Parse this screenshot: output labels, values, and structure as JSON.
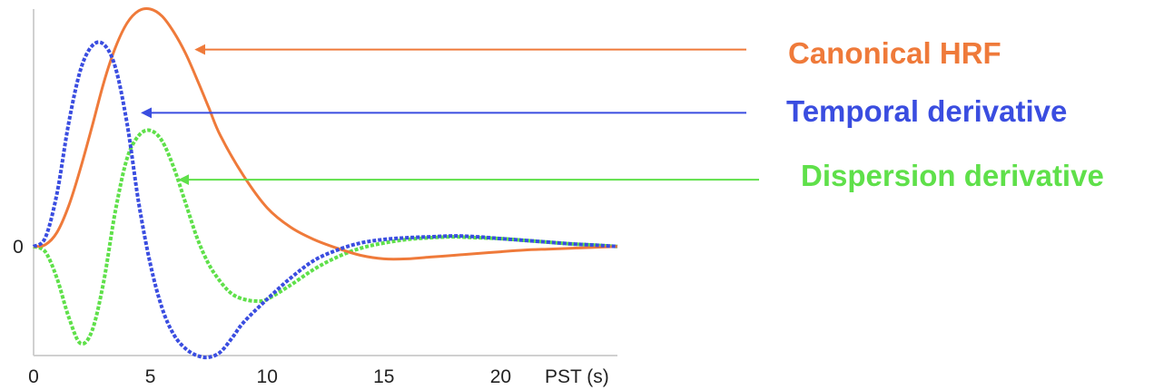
{
  "chart_data": {
    "type": "line",
    "title": "",
    "xlabel": "PST (s)",
    "ylabel": "",
    "xlim": [
      0,
      25
    ],
    "ylim": [
      -0.62,
      1.35
    ],
    "grid": false,
    "x_ticks": [
      0,
      5,
      10,
      15,
      20
    ],
    "x_tick_labels": [
      "0",
      "5",
      "10",
      "15",
      "20"
    ],
    "y_ticks": [
      0
    ],
    "y_tick_labels": [
      "0"
    ],
    "legend_placement": "right, with arrows pointing to each curve",
    "series": [
      {
        "name": "Canonical HRF",
        "color": "#ef7a3a",
        "style": "solid",
        "x": [
          0,
          0.5,
          1,
          1.5,
          2,
          2.5,
          3,
          3.5,
          4,
          4.5,
          5,
          5.5,
          6,
          6.5,
          7,
          7.5,
          8,
          9,
          10,
          11,
          12,
          13,
          14,
          15,
          16,
          17,
          18,
          19,
          20,
          21,
          22,
          23,
          24,
          25
        ],
        "values": [
          0,
          0.01,
          0.08,
          0.23,
          0.44,
          0.68,
          0.93,
          1.13,
          1.27,
          1.34,
          1.35,
          1.31,
          1.22,
          1.1,
          0.95,
          0.79,
          0.63,
          0.4,
          0.22,
          0.11,
          0.04,
          -0.01,
          -0.05,
          -0.07,
          -0.07,
          -0.06,
          -0.05,
          -0.04,
          -0.03,
          -0.02,
          -0.015,
          -0.01,
          -0.005,
          0
        ]
      },
      {
        "name": "Temporal derivative",
        "color": "#3a4de0",
        "style": "dashed",
        "x": [
          0,
          0.5,
          1,
          1.5,
          2,
          2.5,
          3,
          3.5,
          4,
          4.5,
          5,
          5.5,
          6,
          6.5,
          7,
          7.5,
          8,
          8.5,
          9,
          10,
          11,
          12,
          13,
          14,
          15,
          16,
          17,
          18,
          19,
          20,
          21,
          22,
          23,
          24,
          25
        ],
        "values": [
          0,
          0.05,
          0.3,
          0.7,
          1.0,
          1.14,
          1.15,
          1.02,
          0.7,
          0.25,
          -0.1,
          -0.35,
          -0.5,
          -0.58,
          -0.62,
          -0.63,
          -0.6,
          -0.52,
          -0.43,
          -0.3,
          -0.18,
          -0.08,
          -0.02,
          0.02,
          0.04,
          0.05,
          0.055,
          0.06,
          0.055,
          0.045,
          0.035,
          0.025,
          0.015,
          0.008,
          0
        ]
      },
      {
        "name": "Dispersion derivative",
        "color": "#5fe04a",
        "style": "dashed",
        "x": [
          0,
          0.5,
          1,
          1.5,
          2,
          2.5,
          3,
          3.5,
          4,
          4.5,
          5,
          5.5,
          6,
          6.5,
          7,
          7.5,
          8,
          8.5,
          9,
          9.5,
          10,
          11,
          12,
          13,
          14,
          15,
          16,
          17,
          18,
          19,
          20,
          21,
          22,
          23,
          24,
          25
        ],
        "values": [
          0,
          -0.03,
          -0.18,
          -0.4,
          -0.55,
          -0.48,
          -0.2,
          0.2,
          0.5,
          0.63,
          0.66,
          0.6,
          0.45,
          0.25,
          0.05,
          -0.1,
          -0.2,
          -0.27,
          -0.3,
          -0.31,
          -0.3,
          -0.22,
          -0.13,
          -0.06,
          -0.01,
          0.02,
          0.04,
          0.05,
          0.055,
          0.05,
          0.045,
          0.035,
          0.025,
          0.015,
          0.008,
          0
        ]
      }
    ],
    "legend": [
      {
        "label": "Canonical HRF",
        "color": "#ef7a3a",
        "arrow_points_to_x": 7,
        "arrow_points_to_y": 1.12
      },
      {
        "label": "Temporal derivative",
        "color": "#3a4de0",
        "arrow_points_to_x": 4.7,
        "arrow_points_to_y": 0.76
      },
      {
        "label": "Dispersion derivative",
        "color": "#5fe04a",
        "arrow_points_to_x": 6.3,
        "arrow_points_to_y": 0.38
      }
    ]
  }
}
